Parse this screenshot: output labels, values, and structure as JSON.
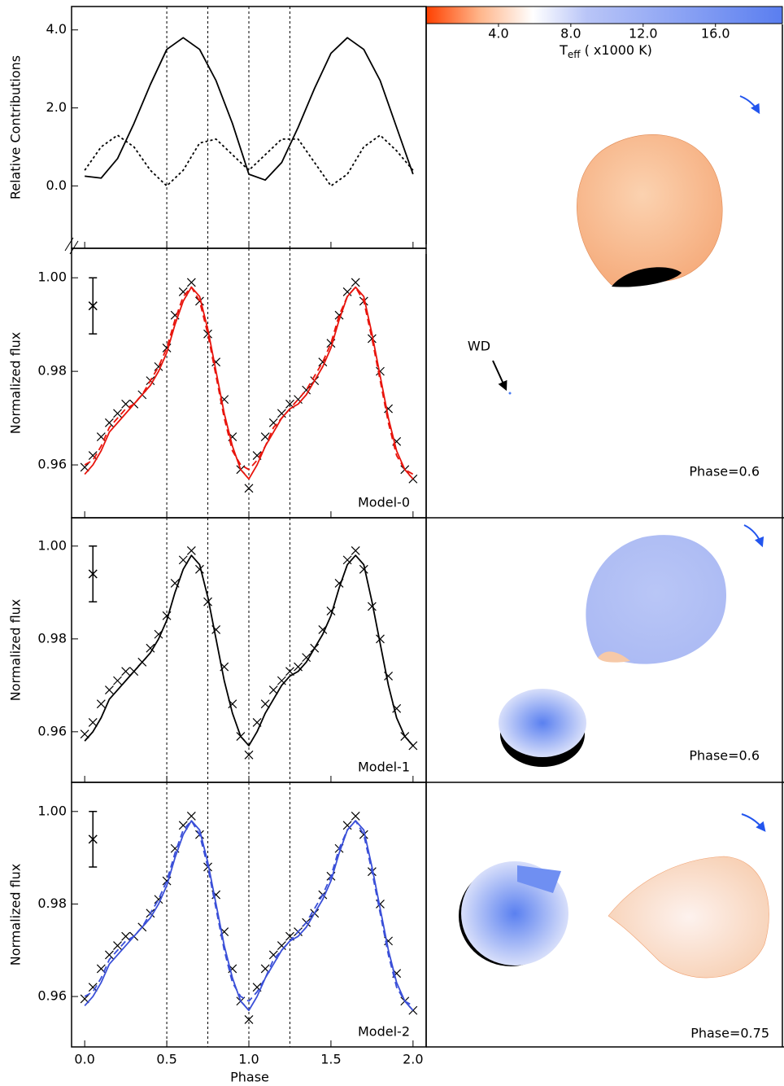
{
  "x_axis": {
    "label": "Phase",
    "xlim": [
      -0.08,
      2.08
    ],
    "xticks": [
      {
        "value": 0,
        "label": "0.0"
      },
      {
        "value": 0.5,
        "label": "0.5"
      },
      {
        "value": 1,
        "label": "1.0"
      },
      {
        "value": 1.5,
        "label": "1.5"
      },
      {
        "value": 2,
        "label": "2.0"
      }
    ],
    "phase_markers": [
      0.5,
      0.75,
      1.0,
      1.25
    ]
  },
  "chart_data": [
    {
      "type": "line",
      "ylabel": "Relative Contributions",
      "ylim": [
        -1.6,
        4.6
      ],
      "yticks": [
        {
          "value": 4,
          "label": "4.0"
        },
        {
          "value": 2,
          "label": "2.0"
        },
        {
          "value": 0,
          "label": "0.0"
        }
      ],
      "x": [
        0,
        0.1,
        0.2,
        0.3,
        0.4,
        0.5,
        0.6,
        0.7,
        0.8,
        0.9,
        1.0,
        1.1,
        1.2,
        1.3,
        1.4,
        1.5,
        1.6,
        1.7,
        1.8,
        1.9,
        2.0
      ],
      "series": [
        {
          "color": "#000000",
          "style": "solid",
          "values": [
            0.25,
            0.2,
            0.7,
            1.6,
            2.6,
            3.5,
            3.8,
            3.5,
            2.7,
            1.6,
            0.3,
            0.15,
            0.6,
            1.5,
            2.5,
            3.4,
            3.8,
            3.5,
            2.7,
            1.5,
            0.3
          ]
        },
        {
          "color": "#000000",
          "style": "dotted",
          "values": [
            0.4,
            1.0,
            1.3,
            1.0,
            0.4,
            0.0,
            0.4,
            1.1,
            1.2,
            0.8,
            0.4,
            0.8,
            1.2,
            1.2,
            0.6,
            0.0,
            0.3,
            1.0,
            1.3,
            0.9,
            0.4
          ]
        }
      ]
    },
    {
      "type": "lightcurve",
      "label": "Model-0",
      "ylabel": "Normalized flux",
      "ylim": [
        0.9487,
        1.0063
      ],
      "yticks": [
        {
          "value": 1,
          "label": "1.00"
        },
        0.98,
        0.96
      ],
      "error_bar": {
        "x": 0.05,
        "value": 0.994,
        "error": 0.006
      },
      "x": [
        0,
        0.05,
        0.1,
        0.15,
        0.2,
        0.25,
        0.3,
        0.35,
        0.4,
        0.45,
        0.5,
        0.55,
        0.6,
        0.65,
        0.7,
        0.75,
        0.8,
        0.85,
        0.9,
        0.95,
        1.0,
        1.05,
        1.1,
        1.15,
        1.2,
        1.25,
        1.3,
        1.35,
        1.4,
        1.45,
        1.5,
        1.55,
        1.6,
        1.65,
        1.7,
        1.75,
        1.8,
        1.85,
        1.9,
        1.95,
        2.0
      ],
      "series": [
        {
          "color": "#000000",
          "style": "cross",
          "values": [
            0.9595,
            0.962,
            0.966,
            0.969,
            0.971,
            0.973,
            0.973,
            0.975,
            0.978,
            0.981,
            0.985,
            0.992,
            0.997,
            0.999,
            0.995,
            0.988,
            0.982,
            0.974,
            0.966,
            0.959,
            0.955,
            0.962,
            0.966,
            0.969,
            0.971,
            0.973,
            0.974,
            0.976,
            0.978,
            0.982,
            0.986,
            0.992,
            0.997,
            0.999,
            0.995,
            0.987,
            0.98,
            0.972,
            0.965,
            0.959,
            0.957
          ]
        },
        {
          "color": "#e8140c",
          "style": "solid",
          "values": [
            0.958,
            0.96,
            0.963,
            0.967,
            0.969,
            0.971,
            0.973,
            0.975,
            0.977,
            0.98,
            0.984,
            0.99,
            0.995,
            0.998,
            0.996,
            0.989,
            0.98,
            0.971,
            0.964,
            0.959,
            0.957,
            0.96,
            0.964,
            0.967,
            0.97,
            0.972,
            0.973,
            0.975,
            0.978,
            0.981,
            0.985,
            0.991,
            0.996,
            0.998,
            0.996,
            0.988,
            0.979,
            0.97,
            0.963,
            0.959,
            0.957
          ]
        },
        {
          "color": "#e8140c",
          "style": "dashed",
          "values": [
            0.96,
            0.961,
            0.964,
            0.968,
            0.97,
            0.972,
            0.973,
            0.975,
            0.978,
            0.981,
            0.985,
            0.991,
            0.996,
            0.998,
            0.995,
            0.988,
            0.979,
            0.97,
            0.963,
            0.96,
            0.959,
            0.961,
            0.964,
            0.968,
            0.97,
            0.972,
            0.974,
            0.976,
            0.979,
            0.982,
            0.986,
            0.992,
            0.996,
            0.998,
            0.995,
            0.987,
            0.978,
            0.969,
            0.962,
            0.959,
            0.958
          ]
        }
      ]
    },
    {
      "type": "lightcurve",
      "label": "Model-1",
      "ylabel": "Normalized flux",
      "ylim": [
        0.9491,
        1.0061
      ],
      "yticks": [
        {
          "value": 1,
          "label": "1.00"
        },
        0.98,
        0.96
      ],
      "error_bar": {
        "x": 0.05,
        "value": 0.994,
        "error": 0.006
      },
      "x": [
        0,
        0.05,
        0.1,
        0.15,
        0.2,
        0.25,
        0.3,
        0.35,
        0.4,
        0.45,
        0.5,
        0.55,
        0.6,
        0.65,
        0.7,
        0.75,
        0.8,
        0.85,
        0.9,
        0.95,
        1.0,
        1.05,
        1.1,
        1.15,
        1.2,
        1.25,
        1.3,
        1.35,
        1.4,
        1.45,
        1.5,
        1.55,
        1.6,
        1.65,
        1.7,
        1.75,
        1.8,
        1.85,
        1.9,
        1.95,
        2.0
      ],
      "series": [
        {
          "color": "#000000",
          "style": "cross",
          "values": [
            0.9595,
            0.962,
            0.966,
            0.969,
            0.971,
            0.973,
            0.973,
            0.975,
            0.978,
            0.981,
            0.985,
            0.992,
            0.997,
            0.999,
            0.995,
            0.988,
            0.982,
            0.974,
            0.966,
            0.959,
            0.955,
            0.962,
            0.966,
            0.969,
            0.971,
            0.973,
            0.974,
            0.976,
            0.978,
            0.982,
            0.986,
            0.992,
            0.997,
            0.999,
            0.995,
            0.987,
            0.98,
            0.972,
            0.965,
            0.959,
            0.957
          ]
        },
        {
          "color": "#000000",
          "style": "solid",
          "values": [
            0.958,
            0.96,
            0.963,
            0.967,
            0.969,
            0.971,
            0.973,
            0.975,
            0.977,
            0.98,
            0.984,
            0.99,
            0.995,
            0.998,
            0.996,
            0.989,
            0.98,
            0.971,
            0.964,
            0.959,
            0.957,
            0.96,
            0.964,
            0.967,
            0.97,
            0.972,
            0.973,
            0.975,
            0.978,
            0.981,
            0.985,
            0.991,
            0.996,
            0.998,
            0.996,
            0.988,
            0.979,
            0.97,
            0.963,
            0.959,
            0.957
          ]
        }
      ]
    },
    {
      "type": "lightcurve",
      "label": "Model-2",
      "ylabel": "Normalized flux",
      "ylim": [
        0.9491,
        1.0063
      ],
      "yticks": [
        {
          "value": 1,
          "label": "1.00"
        },
        0.98,
        0.96
      ],
      "error_bar": {
        "x": 0.05,
        "value": 0.994,
        "error": 0.006
      },
      "x": [
        0,
        0.05,
        0.1,
        0.15,
        0.2,
        0.25,
        0.3,
        0.35,
        0.4,
        0.45,
        0.5,
        0.55,
        0.6,
        0.65,
        0.7,
        0.75,
        0.8,
        0.85,
        0.9,
        0.95,
        1.0,
        1.05,
        1.1,
        1.15,
        1.2,
        1.25,
        1.3,
        1.35,
        1.4,
        1.45,
        1.5,
        1.55,
        1.6,
        1.65,
        1.7,
        1.75,
        1.8,
        1.85,
        1.9,
        1.95,
        2.0
      ],
      "series": [
        {
          "color": "#000000",
          "style": "cross",
          "values": [
            0.9595,
            0.962,
            0.966,
            0.969,
            0.971,
            0.973,
            0.973,
            0.975,
            0.978,
            0.981,
            0.985,
            0.992,
            0.997,
            0.999,
            0.995,
            0.988,
            0.982,
            0.974,
            0.966,
            0.959,
            0.955,
            0.962,
            0.966,
            0.969,
            0.971,
            0.973,
            0.974,
            0.976,
            0.978,
            0.982,
            0.986,
            0.992,
            0.997,
            0.999,
            0.995,
            0.987,
            0.98,
            0.972,
            0.965,
            0.959,
            0.957
          ]
        },
        {
          "color": "#3a4fd8",
          "style": "solid",
          "values": [
            0.958,
            0.96,
            0.963,
            0.967,
            0.969,
            0.971,
            0.973,
            0.975,
            0.977,
            0.98,
            0.984,
            0.99,
            0.995,
            0.998,
            0.996,
            0.989,
            0.98,
            0.971,
            0.964,
            0.959,
            0.957,
            0.96,
            0.964,
            0.967,
            0.97,
            0.972,
            0.973,
            0.975,
            0.978,
            0.981,
            0.985,
            0.991,
            0.996,
            0.998,
            0.996,
            0.988,
            0.979,
            0.97,
            0.963,
            0.959,
            0.957
          ]
        },
        {
          "color": "#3a4fd8",
          "style": "dashed",
          "values": [
            0.96,
            0.961,
            0.964,
            0.968,
            0.97,
            0.972,
            0.973,
            0.975,
            0.978,
            0.981,
            0.985,
            0.991,
            0.996,
            0.998,
            0.995,
            0.988,
            0.979,
            0.97,
            0.963,
            0.96,
            0.959,
            0.961,
            0.964,
            0.968,
            0.97,
            0.972,
            0.974,
            0.976,
            0.979,
            0.982,
            0.986,
            0.992,
            0.996,
            0.998,
            0.995,
            0.987,
            0.978,
            0.969,
            0.962,
            0.959,
            0.958
          ]
        }
      ]
    }
  ],
  "colorbar": {
    "label": "T",
    "label_sub": "eff",
    "label_rest": " ( x1000 K)",
    "clim": [
      0,
      19.7
    ],
    "ticks": [
      {
        "value": 4,
        "label": "4.0"
      },
      {
        "value": 8,
        "label": "8.0"
      },
      {
        "value": 12,
        "label": "12.0"
      },
      {
        "value": 16,
        "label": "16.0"
      }
    ]
  },
  "snapshots": [
    {
      "phase_label": "Phase=0.6",
      "annotation": "WD"
    },
    {
      "phase_label": "Phase=0.6"
    },
    {
      "phase_label": "Phase=0.75"
    }
  ]
}
